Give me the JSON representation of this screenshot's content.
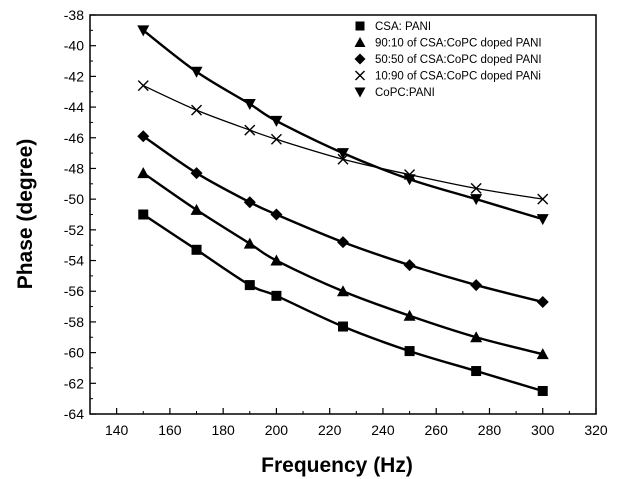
{
  "chart_data": {
    "type": "line",
    "title": "",
    "xlabel": "Frequency (Hz)",
    "ylabel": "Phase (degree)",
    "xlim": [
      130,
      320
    ],
    "ylim": [
      -64,
      -38
    ],
    "xticks": [
      140,
      160,
      180,
      200,
      220,
      240,
      260,
      280,
      300,
      320
    ],
    "yticks": [
      -38,
      -40,
      -42,
      -44,
      -46,
      -48,
      -50,
      -52,
      -54,
      -56,
      -58,
      -60,
      -62,
      -64
    ],
    "grid": false,
    "legend_position": "top-right",
    "x": [
      150,
      170,
      190,
      200,
      225,
      250,
      275,
      300
    ],
    "series": [
      {
        "name": "CSA: PANI",
        "marker": "square",
        "values": [
          -51.0,
          -53.3,
          -55.6,
          -56.3,
          -58.3,
          -59.9,
          -61.2,
          -62.5
        ]
      },
      {
        "name": "90:10 of CSA:CoPC doped PANI",
        "marker": "triangle-up",
        "values": [
          -48.3,
          -50.7,
          -52.9,
          -54.0,
          -56.0,
          -57.6,
          -59.0,
          -60.1
        ]
      },
      {
        "name": "50:50 of CSA:CoPC doped PANI",
        "marker": "diamond",
        "values": [
          -45.9,
          -48.3,
          -50.2,
          -51.0,
          -52.8,
          -54.3,
          -55.6,
          -56.7
        ]
      },
      {
        "name": "10:90 of CSA:CoPC doped PANi",
        "marker": "x",
        "values": [
          -42.6,
          -44.2,
          -45.5,
          -46.1,
          -47.4,
          -48.4,
          -49.3,
          -50.0
        ]
      },
      {
        "name": "CoPC:PANI",
        "marker": "triangle-down",
        "values": [
          -39.0,
          -41.7,
          -43.8,
          -44.9,
          -47.0,
          -48.7,
          -50.0,
          -51.3
        ]
      }
    ]
  }
}
